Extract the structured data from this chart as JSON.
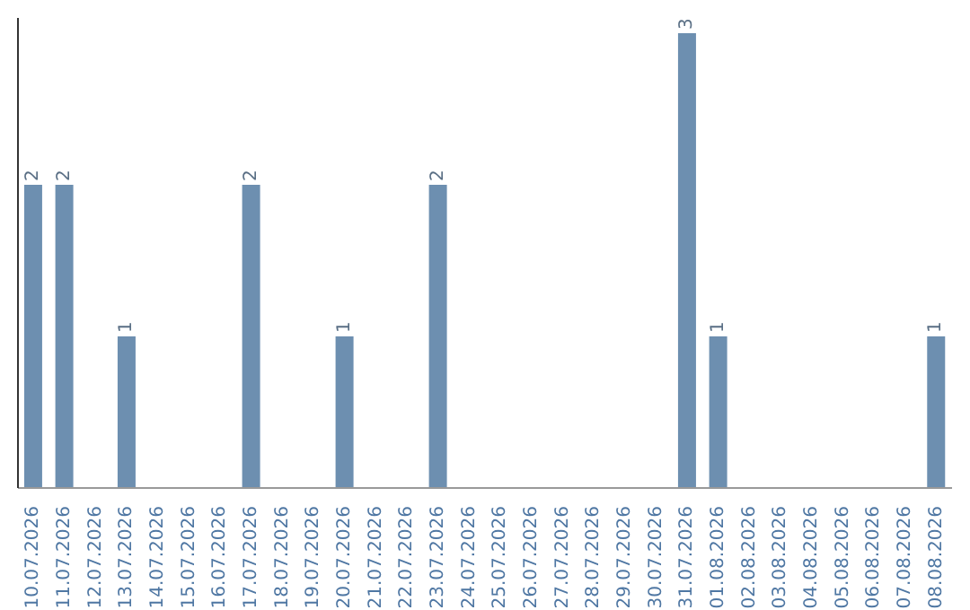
{
  "chart_data": {
    "type": "bar",
    "categories": [
      "10.07.2026",
      "11.07.2026",
      "12.07.2026",
      "13.07.2026",
      "14.07.2026",
      "15.07.2026",
      "16.07.2026",
      "17.07.2026",
      "18.07.2026",
      "19.07.2026",
      "20.07.2026",
      "21.07.2026",
      "22.07.2026",
      "23.07.2026",
      "24.07.2026",
      "25.07.2026",
      "26.07.2026",
      "27.07.2026",
      "28.07.2026",
      "29.07.2026",
      "30.07.2026",
      "31.07.2026",
      "01.08.2026",
      "02.08.2026",
      "03.08.2026",
      "04.08.2026",
      "05.08.2026",
      "06.08.2026",
      "07.08.2026",
      "08.08.2026"
    ],
    "values": [
      2,
      2,
      0,
      1,
      0,
      0,
      0,
      2,
      0,
      0,
      1,
      0,
      0,
      2,
      0,
      0,
      0,
      0,
      0,
      0,
      0,
      3,
      1,
      0,
      0,
      0,
      0,
      0,
      0,
      1
    ],
    "value_labels": [
      "2",
      "2",
      null,
      "1",
      null,
      null,
      null,
      "2",
      null,
      null,
      "1",
      null,
      null,
      "2",
      null,
      null,
      null,
      null,
      null,
      null,
      null,
      "3",
      "1",
      null,
      null,
      null,
      null,
      null,
      null,
      "1"
    ],
    "color": "#6d8fb0",
    "ylim": [
      0,
      3.1
    ],
    "tick_labels": "x",
    "grid": false,
    "legend": false
  }
}
